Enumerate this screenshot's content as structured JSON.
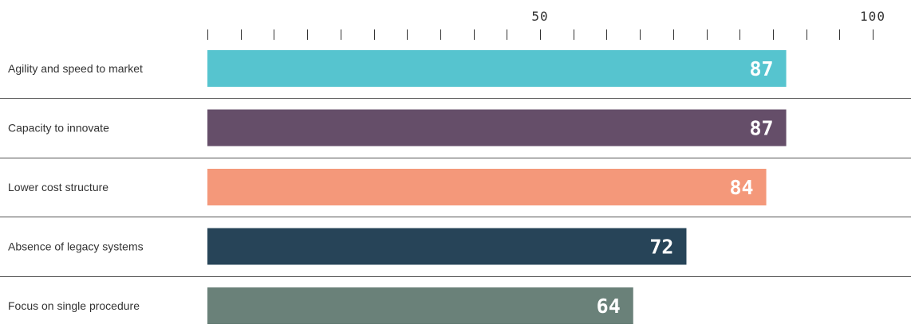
{
  "chart_data": {
    "type": "bar",
    "orientation": "horizontal",
    "categories": [
      "Agility and speed to market",
      "Capacity to innovate",
      "Lower cost structure",
      "Absence of legacy systems",
      "Focus on single procedure"
    ],
    "values": [
      87,
      87,
      84,
      72,
      64
    ],
    "value_labels": [
      "87",
      "87",
      "84",
      "72",
      "64"
    ],
    "colors": [
      "#56c4cf",
      "#654e69",
      "#f4987a",
      "#274458",
      "#6a8179"
    ],
    "xlim": [
      0,
      100
    ],
    "tick_step": 5,
    "x_tick_labels": [
      {
        "value": 50,
        "label": "50"
      },
      {
        "value": 100,
        "label": "100"
      }
    ],
    "title": "",
    "xlabel": "",
    "ylabel": "",
    "grid": false,
    "legend": "none"
  }
}
